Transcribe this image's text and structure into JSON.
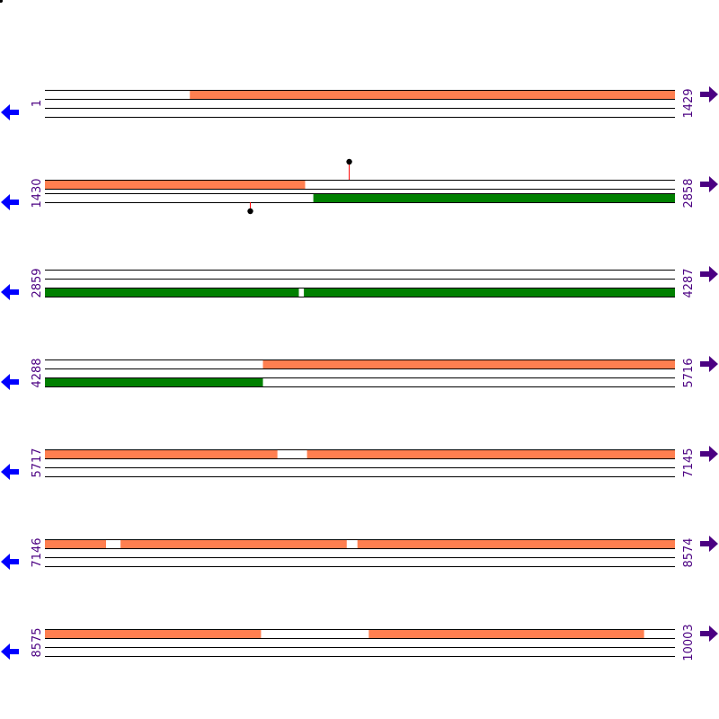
{
  "colors": {
    "forward": "#ff7f50",
    "reverse": "#008000",
    "line": "#000000",
    "label": "#4b0082",
    "left_arrow": "#0000ff",
    "right_arrow": "#4b0082",
    "marker_stem": "#ff0000",
    "marker_dot": "#000000"
  },
  "icons": {
    "left": "arrow-left-icon",
    "right": "arrow-right-icon"
  },
  "rows": [
    {
      "start": "1",
      "end": "1429",
      "tracks": [
        {
          "segments": [
            [
              0.23,
              1.0
            ]
          ],
          "color": "forward"
        },
        {
          "segments": [],
          "color": "forward"
        },
        {
          "segments": [],
          "color": "reverse"
        }
      ],
      "markers": []
    },
    {
      "start": "1430",
      "end": "2858",
      "tracks": [
        {
          "segments": [
            [
              0.0,
              0.413
            ]
          ],
          "color": "forward"
        },
        {
          "segments": [
            [
              0.426,
              1.0
            ]
          ],
          "color": "reverse"
        }
      ],
      "markers": [
        {
          "track": 0,
          "position": 0.483,
          "direction": "up"
        },
        {
          "track": 1,
          "position": 0.326,
          "direction": "down"
        }
      ]
    },
    {
      "start": "2859",
      "end": "4287",
      "tracks": [
        {
          "segments": [],
          "color": "forward"
        },
        {
          "segments": [],
          "color": "forward"
        },
        {
          "segments": [
            [
              0.0,
              0.403
            ],
            [
              0.411,
              1.0
            ]
          ],
          "color": "reverse"
        }
      ],
      "markers": []
    },
    {
      "start": "4288",
      "end": "5716",
      "tracks": [
        {
          "segments": [
            [
              0.346,
              1.0
            ]
          ],
          "color": "forward"
        },
        {
          "segments": [],
          "color": "forward"
        },
        {
          "segments": [
            [
              0.0,
              0.346
            ]
          ],
          "color": "reverse"
        }
      ],
      "markers": []
    },
    {
      "start": "5717",
      "end": "7145",
      "tracks": [
        {
          "segments": [
            [
              0.0,
              0.369
            ],
            [
              0.416,
              1.0
            ]
          ],
          "color": "forward"
        },
        {
          "segments": [],
          "color": "forward"
        },
        {
          "segments": [],
          "color": "reverse"
        }
      ],
      "markers": []
    },
    {
      "start": "7146",
      "end": "8574",
      "tracks": [
        {
          "segments": [
            [
              0.0,
              0.097
            ],
            [
              0.12,
              0.479
            ],
            [
              0.496,
              1.0
            ]
          ],
          "color": "forward"
        },
        {
          "segments": [],
          "color": "forward"
        },
        {
          "segments": [],
          "color": "reverse"
        }
      ],
      "markers": []
    },
    {
      "start": "8575",
      "end": "10003",
      "tracks": [
        {
          "segments": [
            [
              0.0,
              0.343
            ],
            [
              0.514,
              0.951
            ]
          ],
          "color": "forward"
        },
        {
          "segments": [],
          "color": "forward"
        },
        {
          "segments": [],
          "color": "reverse"
        }
      ],
      "markers": []
    }
  ]
}
